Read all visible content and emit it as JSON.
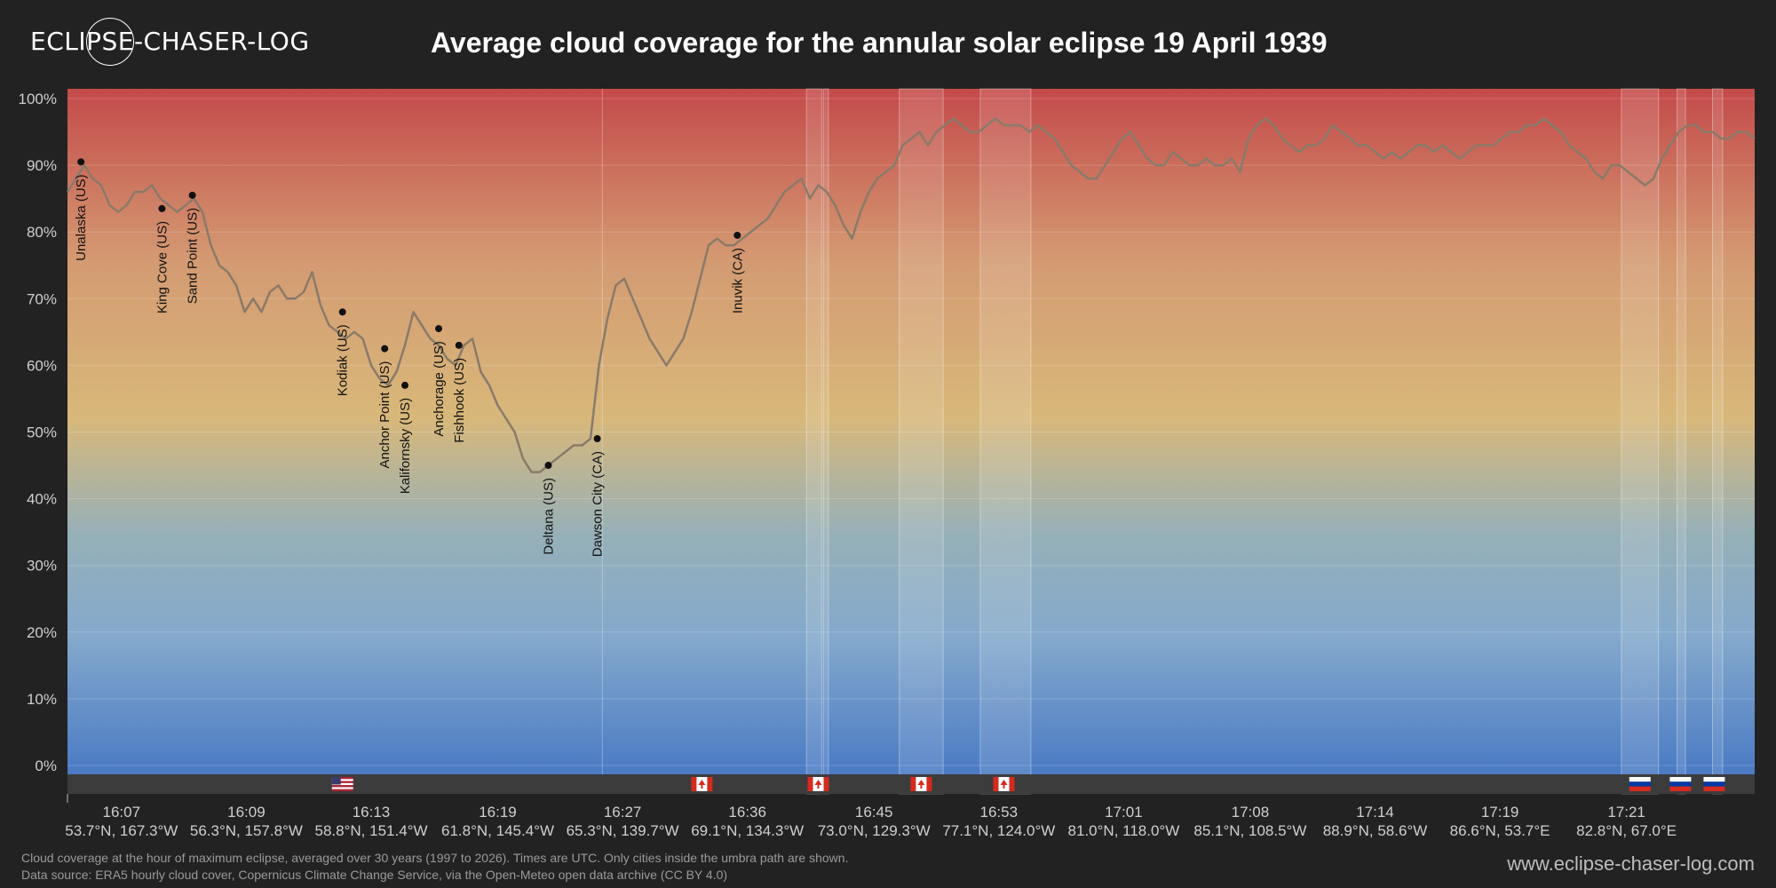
{
  "header": {
    "logo_text": "ECLIPSE-CHASER-LOG",
    "title": "Average cloud coverage for the annular solar eclipse 19 April 1939"
  },
  "footer": {
    "note_line1": "Cloud coverage at the hour of maximum eclipse, averaged over 30 years (1997 to 2026). Times are UTC. Only cities inside the umbra path are shown.",
    "note_line2": "Data source: ERA5 hourly cloud cover, Copernicus Climate Change Service, via the Open-Meteo open data archive (CC BY 4.0)",
    "website": "www.eclipse-chaser-log.com"
  },
  "colors": {
    "background": "#222222",
    "line": "#8a7a6a",
    "high_cloud": "#c44a4a",
    "mid_cloud": "#d8b87a",
    "low_cloud": "#4a7ac4",
    "border_strip": "#3c3c3c"
  },
  "chart_data": {
    "type": "line",
    "title": "Average cloud coverage for the annular solar eclipse 19 April 1939",
    "ylim": [
      0,
      100
    ],
    "xlim": [
      0,
      100
    ],
    "y_ticks": [
      {
        "value": 0,
        "label": "0%"
      },
      {
        "value": 10,
        "label": "10%"
      },
      {
        "value": 20,
        "label": "20%"
      },
      {
        "value": 30,
        "label": "30%"
      },
      {
        "value": 40,
        "label": "40%"
      },
      {
        "value": 50,
        "label": "50%"
      },
      {
        "value": 60,
        "label": "60%"
      },
      {
        "value": 70,
        "label": "70%"
      },
      {
        "value": 80,
        "label": "80%"
      },
      {
        "value": 90,
        "label": "90%"
      },
      {
        "value": 100,
        "label": "100%"
      }
    ],
    "x_ticks": [
      {
        "x": 3.2,
        "time": "16:07",
        "coord": "53.7°N, 167.3°W"
      },
      {
        "x": 10.6,
        "time": "16:09",
        "coord": "56.3°N, 157.8°W"
      },
      {
        "x": 18.0,
        "time": "16:13",
        "coord": "58.8°N, 151.4°W"
      },
      {
        "x": 25.5,
        "time": "16:19",
        "coord": "61.8°N, 145.4°W"
      },
      {
        "x": 32.9,
        "time": "16:27",
        "coord": "65.3°N, 139.7°W"
      },
      {
        "x": 40.3,
        "time": "16:36",
        "coord": "69.1°N, 134.3°W"
      },
      {
        "x": 47.8,
        "time": "16:45",
        "coord": "73.0°N, 129.3°W"
      },
      {
        "x": 55.2,
        "time": "16:53",
        "coord": "77.1°N, 124.0°W"
      },
      {
        "x": 62.6,
        "time": "17:01",
        "coord": "81.0°N, 118.0°W"
      },
      {
        "x": 70.1,
        "time": "17:08",
        "coord": "85.1°N, 108.5°W"
      },
      {
        "x": 77.5,
        "time": "17:14",
        "coord": "88.9°N, 58.6°W"
      },
      {
        "x": 84.9,
        "time": "17:19",
        "coord": "86.6°N, 53.7°E"
      },
      {
        "x": 92.4,
        "time": "17:21",
        "coord": "82.8°N, 67.0°E"
      }
    ],
    "x": [
      0,
      0.5,
      1.0,
      1.5,
      2.0,
      2.5,
      3.0,
      3.5,
      4.0,
      4.5,
      5.0,
      5.5,
      6.0,
      6.5,
      7.0,
      7.5,
      8.0,
      8.5,
      9.0,
      9.5,
      10.0,
      10.5,
      11.0,
      11.5,
      12.0,
      12.5,
      13.0,
      13.5,
      14.0,
      14.5,
      15.0,
      15.5,
      16.0,
      16.5,
      17.0,
      17.5,
      18.0,
      18.5,
      19.0,
      19.5,
      20.0,
      20.5,
      21.0,
      21.5,
      22.0,
      22.5,
      23.0,
      23.5,
      24.0,
      24.5,
      25.0,
      25.5,
      26.0,
      26.5,
      27.0,
      27.5,
      28.0,
      28.5,
      29.0,
      29.5,
      30.0,
      30.5,
      31.0,
      31.5,
      32.0,
      32.5,
      33.0,
      33.5,
      34.0,
      34.5,
      35.0,
      35.5,
      36.0,
      36.5,
      37.0,
      37.5,
      38.0,
      38.5,
      39.0,
      39.5,
      40.0,
      40.5,
      41.0,
      41.5,
      42.0,
      42.5,
      43.0,
      43.5,
      44.0,
      44.5,
      45.0,
      45.5,
      46.0,
      46.5,
      47.0,
      47.5,
      48.0,
      48.5,
      49.0,
      49.5,
      50.0,
      50.5,
      51.0,
      51.5,
      52.0,
      52.5,
      53.0,
      53.5,
      54.0,
      54.5,
      55.0,
      55.5,
      56.0,
      56.5,
      57.0,
      57.5,
      58.0,
      58.5,
      59.0,
      59.5,
      60.0,
      60.5,
      61.0,
      61.5,
      62.0,
      62.5,
      63.0,
      63.5,
      64.0,
      64.5,
      65.0,
      65.5,
      66.0,
      66.5,
      67.0,
      67.5,
      68.0,
      68.5,
      69.0,
      69.5,
      70.0,
      70.5,
      71.0,
      71.5,
      72.0,
      72.5,
      73.0,
      73.5,
      74.0,
      74.5,
      75.0,
      75.5,
      76.0,
      76.5,
      77.0,
      77.5,
      78.0,
      78.5,
      79.0,
      79.5,
      80.0,
      80.5,
      81.0,
      81.5,
      82.0,
      82.5,
      83.0,
      83.5,
      84.0,
      84.5,
      85.0,
      85.5,
      86.0,
      86.5,
      87.0,
      87.5,
      88.0,
      88.5,
      89.0,
      89.5,
      90.0,
      90.5,
      91.0,
      91.5,
      92.0,
      92.5,
      93.0,
      93.5,
      94.0,
      94.5,
      95.0,
      95.5,
      96.0,
      96.5,
      97.0,
      97.5,
      98.0,
      98.5,
      99.0,
      99.5,
      100
    ],
    "values": [
      86,
      88,
      90,
      88,
      87,
      84,
      83,
      84,
      86,
      86,
      87,
      85,
      84,
      83,
      84,
      85,
      83,
      78,
      75,
      74,
      72,
      68,
      70,
      68,
      71,
      72,
      70,
      70,
      71,
      74,
      69,
      66,
      65,
      64,
      65,
      64,
      60,
      58,
      57,
      59,
      63,
      68,
      66,
      64,
      63,
      61,
      60,
      63,
      64,
      59,
      57,
      54,
      52,
      50,
      46,
      44,
      44,
      45,
      46,
      47,
      48,
      48,
      49,
      60,
      67,
      72,
      73,
      70,
      67,
      64,
      62,
      60,
      62,
      64,
      68,
      73,
      78,
      79,
      78,
      78,
      79,
      80,
      81,
      82,
      84,
      86,
      87,
      88,
      85,
      87,
      86,
      84,
      81,
      79,
      83,
      86,
      88,
      89,
      90,
      93,
      94,
      95,
      93,
      95,
      96,
      97,
      96,
      95,
      95,
      96,
      97,
      96,
      96,
      96,
      95,
      96,
      95,
      94,
      92,
      90,
      89,
      88,
      88,
      90,
      92,
      94,
      95,
      93,
      91,
      90,
      90,
      92,
      91,
      90,
      90,
      91,
      90,
      90,
      91,
      89,
      94,
      96,
      97,
      96,
      94,
      93,
      92,
      93,
      93,
      94,
      96,
      95,
      94,
      93,
      93,
      92,
      91,
      92,
      91,
      92,
      93,
      93,
      92,
      93,
      92,
      91,
      92,
      93,
      93,
      93,
      94,
      95,
      95,
      96,
      96,
      97,
      96,
      95,
      93,
      92,
      91,
      89,
      88,
      90,
      90,
      89,
      88,
      87,
      88,
      91,
      93,
      95,
      96,
      96,
      95,
      95,
      94,
      94,
      95,
      95,
      94
    ],
    "cities": [
      {
        "name": "Unalaska (US)",
        "x": 0.8,
        "y": 90.5
      },
      {
        "name": "King Cove (US)",
        "x": 5.6,
        "y": 83.5
      },
      {
        "name": "Sand Point (US)",
        "x": 7.4,
        "y": 85.5
      },
      {
        "name": "Kodiak (US)",
        "x": 16.3,
        "y": 68.0
      },
      {
        "name": "Anchor Point (US)",
        "x": 18.8,
        "y": 62.5
      },
      {
        "name": "Kalifornsky (US)",
        "x": 20.0,
        "y": 57.0
      },
      {
        "name": "Anchorage (US)",
        "x": 22.0,
        "y": 65.5
      },
      {
        "name": "Fishhook (US)",
        "x": 23.2,
        "y": 63.0
      },
      {
        "name": "Deltana (US)",
        "x": 28.5,
        "y": 45.0
      },
      {
        "name": "Dawson City (CA)",
        "x": 31.4,
        "y": 49.0
      },
      {
        "name": "Inuvik (CA)",
        "x": 39.7,
        "y": 79.5
      }
    ],
    "shaded_regions": [
      [
        43.8,
        44.7
      ],
      [
        44.8,
        45.1
      ],
      [
        49.3,
        51.9
      ],
      [
        54.1,
        57.1
      ],
      [
        92.1,
        94.3
      ],
      [
        95.4,
        95.9
      ],
      [
        97.5,
        98.1
      ]
    ],
    "region_lines": [
      31.7
    ],
    "flags": [
      {
        "country": "US",
        "x": 16.3
      },
      {
        "country": "CA",
        "x": 37.6
      },
      {
        "country": "CA",
        "x": 44.5
      },
      {
        "country": "CA",
        "x": 50.6
      },
      {
        "country": "CA",
        "x": 55.5
      },
      {
        "country": "RU",
        "x": 93.2
      },
      {
        "country": "RU",
        "x": 95.6
      },
      {
        "country": "RU",
        "x": 97.6
      }
    ]
  }
}
